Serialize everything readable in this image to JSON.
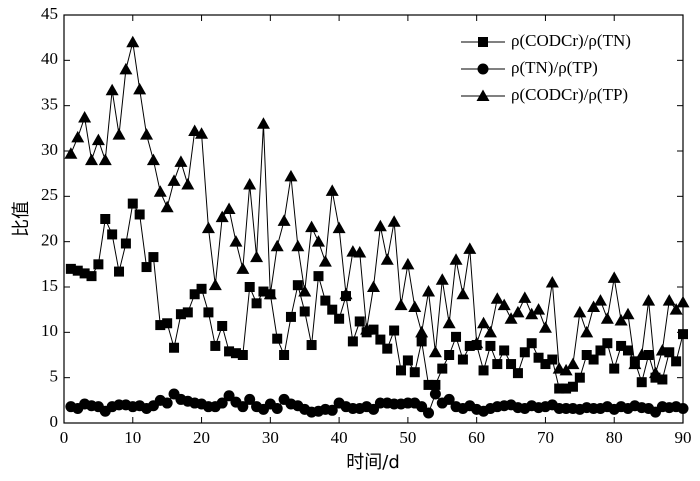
{
  "chart_data": {
    "type": "line",
    "xlabel": "时间/d",
    "ylabel": "比值",
    "x": [
      1,
      2,
      3,
      4,
      5,
      6,
      7,
      8,
      9,
      10,
      11,
      12,
      13,
      14,
      15,
      16,
      17,
      18,
      19,
      20,
      21,
      22,
      23,
      24,
      25,
      26,
      27,
      28,
      29,
      30,
      31,
      32,
      33,
      34,
      35,
      36,
      37,
      38,
      39,
      40,
      41,
      42,
      43,
      44,
      45,
      46,
      47,
      48,
      49,
      50,
      51,
      52,
      53,
      54,
      55,
      56,
      57,
      58,
      59,
      60,
      61,
      62,
      63,
      64,
      65,
      66,
      67,
      68,
      69,
      70,
      71,
      72,
      73,
      74,
      75,
      76,
      77,
      78,
      79,
      80,
      81,
      82,
      83,
      84,
      85,
      86,
      87,
      88,
      89,
      90
    ],
    "series": [
      {
        "name": "ρ(CODCr)/ρ(TN)",
        "color": "#000000",
        "marker": "square",
        "values": [
          17,
          16.8,
          16.5,
          16.2,
          17.5,
          22.5,
          20.8,
          16.7,
          19.8,
          24.2,
          23,
          17.2,
          18.3,
          10.8,
          11,
          8.3,
          12,
          12.2,
          14.2,
          14.8,
          12.2,
          8.5,
          10.7,
          7.9,
          7.7,
          7.5,
          15,
          13.2,
          14.5,
          14.2,
          9.3,
          7.5,
          11.7,
          15.2,
          12.3,
          8.6,
          16.2,
          13.5,
          12.5,
          11.5,
          14,
          9,
          11.2,
          10,
          10.3,
          9.2,
          8.2,
          10.2,
          5.8,
          6.9,
          5.6,
          9,
          4.2,
          4.2,
          6,
          7.5,
          9.5,
          7,
          8.5,
          8.6,
          5.8,
          8.5,
          6.5,
          8,
          6.5,
          5.5,
          7.8,
          8.8,
          7.2,
          6.5,
          7,
          3.8,
          3.8,
          4,
          5,
          7.5,
          7,
          8,
          8.8,
          6,
          8.5,
          8,
          6.8,
          4.5,
          7.5,
          5,
          4.8,
          7.8,
          6.8,
          9.8
        ]
      },
      {
        "name": "ρ(TN)/ρ(TP)",
        "color": "#000000",
        "marker": "circle",
        "values": [
          1.8,
          1.6,
          2.1,
          1.9,
          1.8,
          1.3,
          1.8,
          2,
          2,
          1.8,
          1.9,
          1.6,
          1.9,
          2.5,
          2.2,
          3.2,
          2.6,
          2.4,
          2.2,
          2.1,
          1.8,
          1.8,
          2.2,
          3,
          2.3,
          1.8,
          2.6,
          1.8,
          1.5,
          2.1,
          1.6,
          2.6,
          2.1,
          1.9,
          1.5,
          1.2,
          1.3,
          1.5,
          1.4,
          2.2,
          1.8,
          1.6,
          1.6,
          1.8,
          1.5,
          2.2,
          2.2,
          2.1,
          2.1,
          2.2,
          2.2,
          1.8,
          1.1,
          3.2,
          2.2,
          2.6,
          1.8,
          1.6,
          1.9,
          1.5,
          1.3,
          1.6,
          1.8,
          1.9,
          2,
          1.7,
          1.6,
          1.9,
          1.7,
          1.8,
          2,
          1.6,
          1.6,
          1.6,
          1.5,
          1.7,
          1.6,
          1.6,
          1.8,
          1.5,
          1.8,
          1.6,
          1.9,
          1.7,
          1.6,
          1.2,
          1.8,
          1.7,
          1.8,
          1.6
        ]
      },
      {
        "name": "ρ(CODCr)/ρ(TP)",
        "color": "#000000",
        "marker": "triangle",
        "values": [
          29.7,
          31.5,
          33.7,
          29,
          31.2,
          29,
          36.7,
          31.8,
          39,
          42,
          36.8,
          31.8,
          29,
          25.5,
          23.8,
          26.7,
          28.8,
          26.3,
          32.2,
          31.9,
          21.5,
          15.2,
          22.7,
          23.6,
          20,
          17,
          26.3,
          18.3,
          33,
          14.2,
          19.5,
          22.3,
          27.2,
          19.5,
          14.5,
          21.6,
          20,
          17.8,
          25.6,
          21.5,
          14.2,
          18.9,
          18.8,
          10.3,
          15,
          21.7,
          18,
          22.2,
          13,
          17.5,
          12.8,
          10,
          14.5,
          7.8,
          15.8,
          11,
          18,
          14.2,
          19.2,
          8.8,
          11,
          10,
          13.7,
          13,
          11.5,
          12.2,
          13.8,
          12,
          12.5,
          10.5,
          15.5,
          6,
          5.8,
          6.5,
          12.2,
          10,
          12.8,
          13.5,
          11.5,
          16,
          11.3,
          12,
          6.5,
          7.5,
          13.5,
          5.5,
          8,
          13.5,
          12.5,
          13.3
        ]
      }
    ],
    "xlim": [
      0,
      90
    ],
    "xticks": [
      0,
      10,
      20,
      30,
      40,
      50,
      60,
      70,
      80,
      90
    ],
    "ylim": [
      0,
      45
    ],
    "yticks": [
      0,
      5,
      10,
      15,
      20,
      25,
      30,
      35,
      40,
      45
    ],
    "legend": "upper right"
  }
}
